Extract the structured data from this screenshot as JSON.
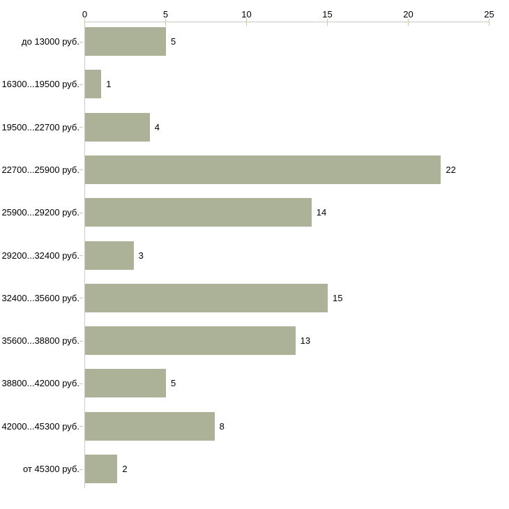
{
  "chart_data": {
    "type": "bar",
    "orientation": "horizontal",
    "title": "",
    "xlabel": "",
    "ylabel": "",
    "categories": [
      "до 13000 руб.",
      "16300...19500 руб.",
      "19500...22700 руб.",
      "22700...25900 руб.",
      "25900...29200 руб.",
      "29200...32400 руб.",
      "32400...35600 руб.",
      "35600...38800 руб.",
      "38800...42000 руб.",
      "42000...45300 руб.",
      "от 45300 руб."
    ],
    "values": [
      5,
      1,
      4,
      22,
      14,
      3,
      15,
      13,
      5,
      8,
      2
    ],
    "xlim": [
      0,
      25
    ],
    "x_ticks": [
      0,
      5,
      10,
      15,
      20,
      25
    ],
    "x_axis_position": "top",
    "grid": false,
    "bar_value_labels_shown": true,
    "colors": {
      "bar": "#ACB297",
      "axis_line": "#C9C9C9",
      "tick": "#CCCC99",
      "text": "#000000",
      "background": "#FFFFFF"
    }
  }
}
